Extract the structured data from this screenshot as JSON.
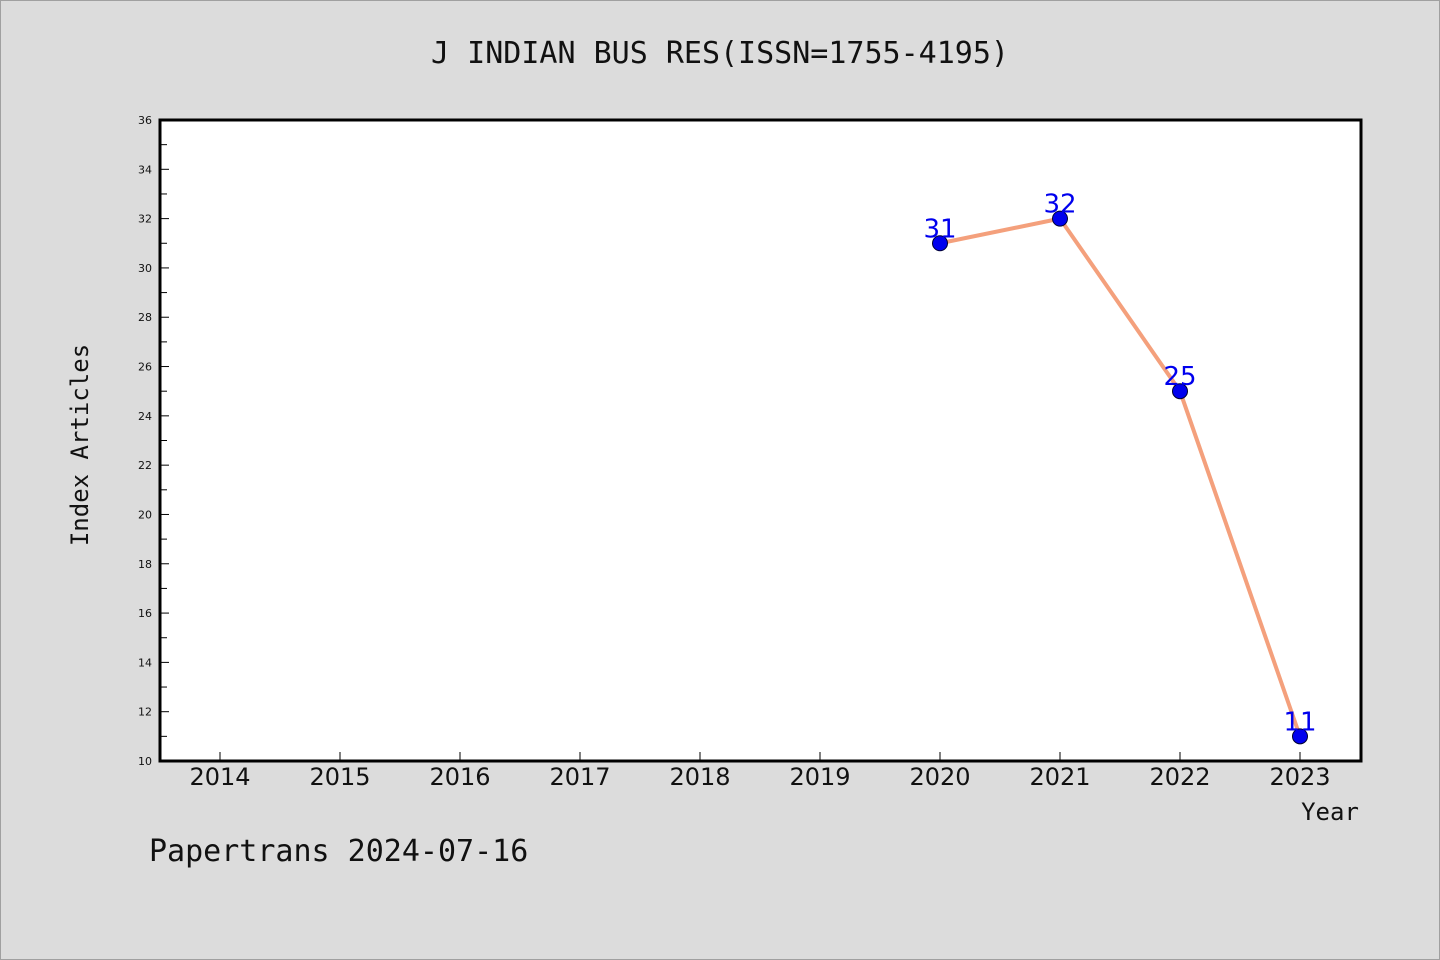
{
  "chart_data": {
    "type": "line",
    "title": "J INDIAN BUS RES(ISSN=1755-4195)",
    "xlabel": "Year",
    "ylabel": "Index Articles",
    "categories": [
      "2014",
      "2015",
      "2016",
      "2017",
      "2018",
      "2019",
      "2020",
      "2021",
      "2022",
      "2023"
    ],
    "y_ticks": [
      "10",
      "12",
      "14",
      "16",
      "18",
      "20",
      "22",
      "24",
      "26",
      "28",
      "30",
      "32",
      "34",
      "36"
    ],
    "ylim": [
      10,
      36
    ],
    "grid": false,
    "series": [
      {
        "points": [
          {
            "x": "2020",
            "y": 31,
            "label": "31"
          },
          {
            "x": "2021",
            "y": 32,
            "label": "32"
          },
          {
            "x": "2022",
            "y": 25,
            "label": "25"
          },
          {
            "x": "2023",
            "y": 11,
            "label": "11"
          }
        ],
        "line_color": "#f4a07c",
        "marker_color": "#0000ee"
      }
    ]
  },
  "footer": {
    "note": "Papertrans 2024-07-16"
  }
}
